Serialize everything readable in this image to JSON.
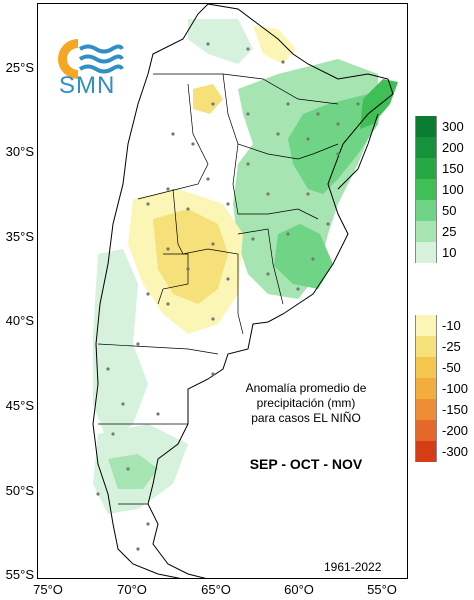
{
  "logo": {
    "text": "SMN",
    "icon": "smn-logo-sun-waves"
  },
  "title": {
    "line1": "Anomalía promedio de",
    "line2": "precipitación (mm)",
    "line3": "para casos EL NIÑO"
  },
  "period": "SEP - OCT - NOV",
  "years": "1961-2022",
  "axes": {
    "lat_labels": [
      "25°S",
      "30°S",
      "35°S",
      "40°S",
      "45°S",
      "50°S",
      "55°S"
    ],
    "lon_labels": [
      "75°O",
      "70°O",
      "65°O",
      "60°O",
      "55°O"
    ]
  },
  "legend": {
    "positive": [
      {
        "label": "300",
        "color": "#0a7d32"
      },
      {
        "label": "200",
        "color": "#16923b"
      },
      {
        "label": "150",
        "color": "#26a845"
      },
      {
        "label": "100",
        "color": "#3fbf55"
      },
      {
        "label": "50",
        "color": "#6fd486"
      },
      {
        "label": "25",
        "color": "#a6e4b2"
      },
      {
        "label": "10",
        "color": "#d6f2dc"
      }
    ],
    "negative": [
      {
        "label": "-10",
        "color": "#fbf6b5"
      },
      {
        "label": "-25",
        "color": "#f6e07a"
      },
      {
        "label": "-50",
        "color": "#f4c64c"
      },
      {
        "label": "-100",
        "color": "#f3ad3c"
      },
      {
        "label": "-150",
        "color": "#ee8d33"
      },
      {
        "label": "-200",
        "color": "#e5672a"
      },
      {
        "label": "-300",
        "color": "#d43d16"
      }
    ]
  }
}
